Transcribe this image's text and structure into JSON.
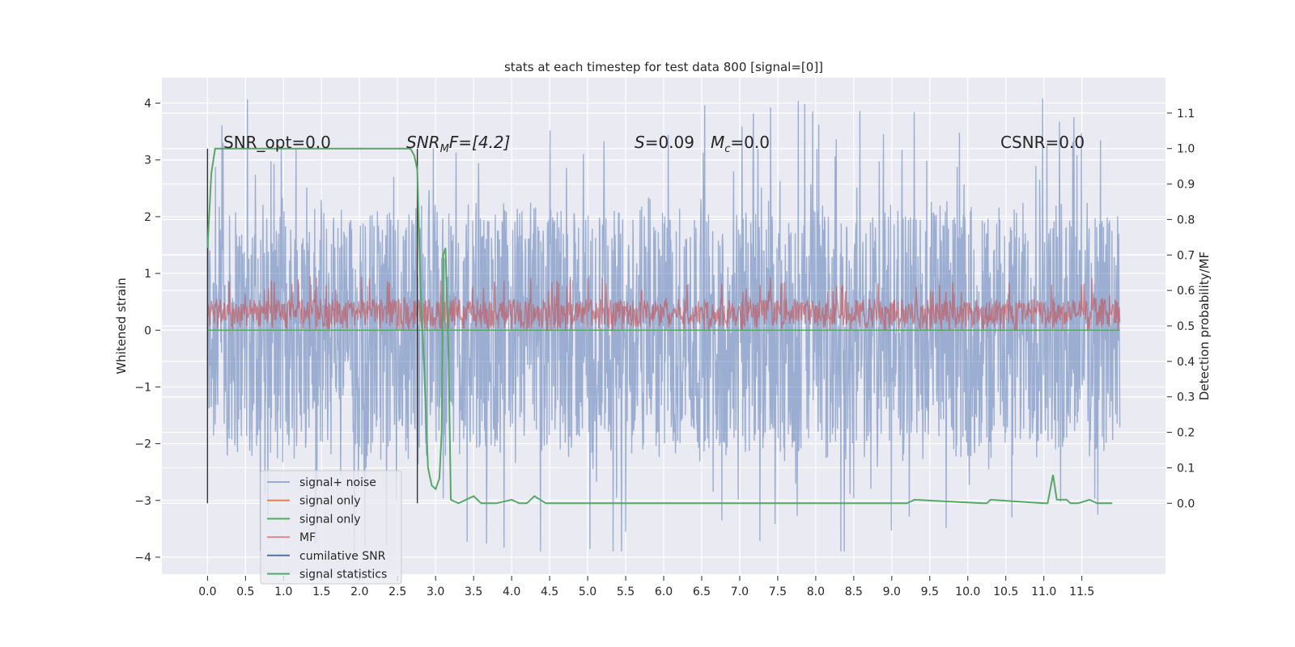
{
  "chart_data": {
    "type": "line",
    "title": "stats at each timestep for test data 800 [signal=[0]]",
    "xlabel": "",
    "ylabel": "Whitened strain",
    "ylabel_right": "Detection probability/MF",
    "xlim": [
      -0.6,
      12.6
    ],
    "ylim": [
      -4.3,
      4.45
    ],
    "ylim_right": [
      -0.2,
      1.2
    ],
    "x_ticks": [
      "0.0",
      "0.5",
      "1.0",
      "1.5",
      "2.0",
      "2.5",
      "3.0",
      "3.5",
      "4.0",
      "4.5",
      "5.0",
      "5.5",
      "6.0",
      "6.5",
      "7.0",
      "7.5",
      "8.0",
      "8.5",
      "9.0",
      "9.5",
      "10.0",
      "10.5",
      "11.0",
      "11.5"
    ],
    "y_ticks": [
      "4",
      "3",
      "2",
      "1",
      "0",
      "−1",
      "−2",
      "−3",
      "−4"
    ],
    "y_ticks_right": [
      "1.1",
      "1.0",
      "0.9",
      "0.8",
      "0.7",
      "0.6",
      "0.5",
      "0.4",
      "0.3",
      "0.2",
      "0.1",
      "0.0"
    ],
    "grid": true,
    "legend_position": "lower-left",
    "annotations": {
      "snr_opt": "SNR_opt=0.0",
      "snr_mf": "SNR",
      "snr_mf_sub": "M",
      "snr_mf_rest": "F=[4.2]",
      "s_label": "S",
      "s_value": "=0.09",
      "mc_label": "M",
      "mc_sub": "c",
      "mc_value": "=0.0",
      "csnr": "CSNR=0.0"
    },
    "series": [
      {
        "name": "signal+ noise",
        "color": "#4c72b0",
        "alpha": 0.5,
        "axis": "left",
        "kind": "noise",
        "x_range": [
          0,
          12
        ],
        "typical_range": [
          -2.0,
          2.0
        ],
        "peaks_max": 4.1,
        "peaks_min": -3.9
      },
      {
        "name": "signal only",
        "color": "#dd8452",
        "axis": "left",
        "kind": "flat",
        "value": 0.0
      },
      {
        "name": "signal only",
        "color": "#55a868",
        "axis": "left",
        "kind": "flat",
        "value": 0.0
      },
      {
        "name": "MF",
        "color": "#c44e52",
        "alpha": 0.6,
        "axis": "left",
        "kind": "band",
        "x_range": [
          0,
          12
        ],
        "typical_range": [
          0.1,
          0.55
        ],
        "peaks_max": 0.95
      },
      {
        "name": "cumilative SNR",
        "color": "#4c72b0",
        "axis": "left",
        "kind": "vlines",
        "x": [
          0.0,
          2.76
        ],
        "y_range": [
          -3.05,
          3.2
        ]
      },
      {
        "name": "signal statistics",
        "color": "#55a868",
        "axis": "right",
        "x": [
          0.0,
          0.05,
          0.1,
          0.2,
          2.5,
          2.6,
          2.67,
          2.72,
          2.76,
          2.8,
          2.85,
          2.9,
          2.95,
          3.0,
          3.05,
          3.08,
          3.1,
          3.13,
          3.17,
          3.2,
          3.3,
          3.5,
          3.6,
          3.8,
          4.0,
          4.1,
          4.2,
          4.3,
          4.45,
          4.6,
          4.8,
          6.8,
          7.0,
          9.2,
          9.3,
          10.2,
          10.25,
          10.3,
          11.0,
          11.05,
          11.12,
          11.17,
          11.2,
          11.3,
          11.35,
          11.4,
          11.45,
          11.6,
          11.7,
          11.8,
          11.9
        ],
        "y": [
          0.72,
          0.93,
          1.0,
          1.0,
          1.0,
          1.0,
          1.0,
          0.98,
          0.94,
          0.62,
          0.38,
          0.1,
          0.05,
          0.04,
          0.07,
          0.2,
          0.7,
          0.72,
          0.42,
          0.01,
          0.0,
          0.02,
          0.0,
          0.0,
          0.01,
          0.0,
          0.0,
          0.02,
          0.0,
          0.0,
          0.0,
          0.0,
          0.0,
          0.0,
          0.01,
          0.0,
          0.0,
          0.01,
          0.0,
          0.0,
          0.08,
          0.01,
          0.01,
          0.01,
          0.0,
          0.0,
          0.0,
          0.01,
          0.0,
          0.0,
          0.0
        ]
      }
    ]
  }
}
